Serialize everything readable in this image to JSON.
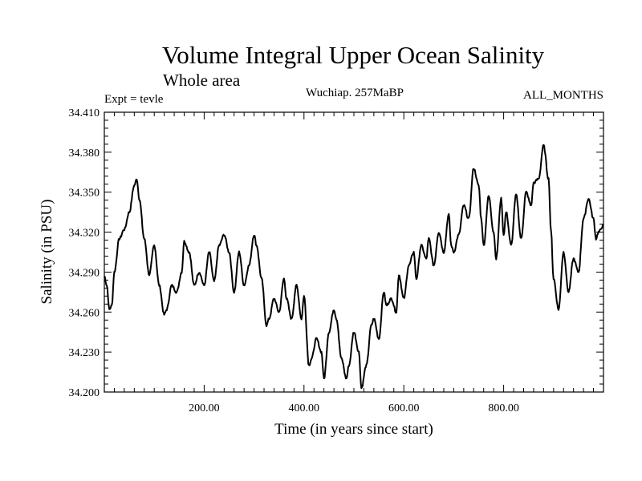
{
  "chart_data": {
    "type": "line",
    "title": "Volume Integral Upper Ocean Salinity",
    "subtitle": "Whole area",
    "left_label": "Expt = tevle",
    "center_label": "Wuchiap. 257MaBP",
    "right_label": "ALL_MONTHS",
    "xlabel": "Time (in years since start)",
    "ylabel": "Salinity (in PSU)",
    "xlim": [
      0,
      1000
    ],
    "ylim": [
      34.2,
      34.41
    ],
    "x_ticks": [
      200,
      400,
      600,
      800
    ],
    "x_tick_labels": [
      "200.00",
      "400.00",
      "600.00",
      "800.00"
    ],
    "y_ticks": [
      34.2,
      34.23,
      34.26,
      34.29,
      34.32,
      34.35,
      34.38,
      34.41
    ],
    "y_tick_labels": [
      "34.200",
      "34.230",
      "34.260",
      "34.290",
      "34.320",
      "34.350",
      "34.380",
      "34.410"
    ],
    "series": [
      {
        "name": "Salinity",
        "color": "#000000",
        "x": [
          0,
          5,
          10,
          15,
          20,
          30,
          40,
          50,
          60,
          65,
          70,
          80,
          90,
          100,
          110,
          120,
          125,
          135,
          145,
          155,
          160,
          170,
          180,
          190,
          200,
          210,
          220,
          230,
          240,
          250,
          260,
          270,
          280,
          290,
          300,
          305,
          315,
          325,
          330,
          340,
          350,
          360,
          365,
          375,
          385,
          395,
          400,
          410,
          415,
          425,
          435,
          440,
          450,
          460,
          465,
          475,
          485,
          490,
          500,
          510,
          515,
          525,
          535,
          540,
          550,
          560,
          565,
          575,
          585,
          590,
          600,
          610,
          620,
          625,
          635,
          645,
          650,
          660,
          670,
          680,
          690,
          695,
          700,
          710,
          720,
          730,
          740,
          750,
          755,
          760,
          770,
          780,
          785,
          795,
          800,
          805,
          815,
          825,
          835,
          845,
          855,
          860,
          870,
          880,
          890,
          895,
          900,
          910,
          920,
          930,
          940,
          950,
          960,
          970,
          980,
          985,
          990,
          1000
        ],
        "y": [
          34.287,
          34.28,
          34.262,
          34.265,
          34.29,
          34.315,
          34.322,
          34.335,
          34.355,
          34.36,
          34.345,
          34.315,
          34.288,
          34.31,
          34.28,
          34.258,
          34.262,
          34.28,
          34.275,
          34.29,
          34.313,
          34.305,
          34.28,
          34.29,
          34.28,
          34.305,
          34.283,
          34.31,
          34.318,
          34.305,
          34.275,
          34.305,
          34.28,
          34.295,
          34.318,
          34.31,
          34.285,
          34.25,
          34.255,
          34.27,
          34.26,
          34.285,
          34.27,
          34.255,
          34.28,
          34.255,
          34.272,
          34.22,
          34.225,
          34.24,
          34.23,
          34.21,
          34.245,
          34.262,
          34.255,
          34.225,
          34.21,
          34.22,
          34.245,
          34.23,
          34.203,
          34.22,
          34.25,
          34.255,
          34.24,
          34.275,
          34.265,
          34.27,
          34.26,
          34.288,
          34.27,
          34.295,
          34.305,
          34.285,
          34.31,
          34.3,
          34.315,
          34.295,
          34.32,
          34.305,
          34.333,
          34.31,
          34.305,
          34.318,
          34.34,
          34.33,
          34.368,
          34.355,
          34.33,
          34.31,
          34.347,
          34.32,
          34.3,
          34.345,
          34.318,
          34.335,
          34.31,
          34.348,
          34.315,
          34.35,
          34.34,
          34.357,
          34.36,
          34.385,
          34.36,
          34.32,
          34.285,
          34.262,
          34.305,
          34.275,
          34.3,
          34.29,
          34.33,
          34.345,
          34.33,
          34.315,
          34.32,
          34.325
        ]
      }
    ]
  }
}
